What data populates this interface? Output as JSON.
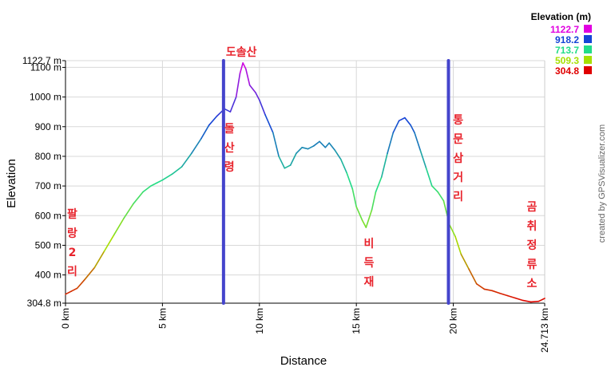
{
  "chart_data": {
    "type": "line",
    "title": "",
    "xlabel": "Distance",
    "ylabel": "Elevation",
    "credit": "created by GPSVisualizer.com",
    "xlim": [
      0,
      24.713
    ],
    "ylim": [
      304.8,
      1122.7
    ],
    "x_ticks": [
      {
        "value": 0,
        "label": "0 km"
      },
      {
        "value": 5,
        "label": "5 km"
      },
      {
        "value": 10,
        "label": "10 km"
      },
      {
        "value": 15,
        "label": "15 km"
      },
      {
        "value": 20,
        "label": "20 km"
      },
      {
        "value": 24.713,
        "label": "24.713 km"
      }
    ],
    "y_ticks": [
      {
        "value": 304.8,
        "label": "304.8 m"
      },
      {
        "value": 400,
        "label": "400 m"
      },
      {
        "value": 500,
        "label": "500 m"
      },
      {
        "value": 600,
        "label": "600 m"
      },
      {
        "value": 700,
        "label": "700 m"
      },
      {
        "value": 800,
        "label": "800 m"
      },
      {
        "value": 900,
        "label": "900 m"
      },
      {
        "value": 1000,
        "label": "1000 m"
      },
      {
        "value": 1100,
        "label": "1100 m"
      },
      {
        "value": 1122.7,
        "label": "1122.7 m"
      }
    ],
    "legend": {
      "title": "Elevation (m)",
      "placement": "top-right",
      "entries": [
        {
          "label": "1122.7",
          "color": "#e100e1"
        },
        {
          "label": "918.2",
          "color": "#1445d6"
        },
        {
          "label": "713.7",
          "color": "#22dd88"
        },
        {
          "label": "509.3",
          "color": "#a6e000"
        },
        {
          "label": "304.8",
          "color": "#e00000"
        }
      ]
    },
    "markers": [
      {
        "x": 8.15,
        "label": "도솔산",
        "label_pos": "top"
      },
      {
        "x": 19.75,
        "label": "",
        "label_pos": "none"
      }
    ],
    "annotations": [
      {
        "x": 0.35,
        "text": "팔랑2리"
      },
      {
        "x": 8.45,
        "text": "돌산령"
      },
      {
        "x": 15.65,
        "text": "비득재"
      },
      {
        "x": 20.25,
        "text": "통문삼거리"
      },
      {
        "x": 24.05,
        "text": "곰취정류소"
      }
    ],
    "series": [
      {
        "x": [
          0,
          0.3,
          0.6,
          1.0,
          1.5,
          2.0,
          2.5,
          3.0,
          3.5,
          4.0,
          4.4,
          4.7,
          5.0,
          5.5,
          6.0,
          6.5,
          7.0,
          7.4,
          7.8,
          8.2,
          8.5,
          8.8,
          9.0,
          9.15,
          9.3,
          9.5,
          9.8,
          10.0,
          10.3,
          10.7,
          11.0,
          11.3,
          11.6,
          11.9,
          12.2,
          12.5,
          12.8,
          13.1,
          13.4,
          13.6,
          13.9,
          14.2,
          14.5,
          14.8,
          15.0,
          15.3,
          15.5,
          15.8,
          16.0,
          16.3,
          16.6,
          16.9,
          17.2,
          17.5,
          17.8,
          18.0,
          18.3,
          18.6,
          18.9,
          19.2,
          19.5,
          19.8,
          20.1,
          20.4,
          20.8,
          21.2,
          21.6,
          22.0,
          22.4,
          22.8,
          23.2,
          23.6,
          24.0,
          24.4,
          24.713
        ],
        "values": [
          335,
          345,
          355,
          385,
          425,
          480,
          535,
          590,
          640,
          680,
          700,
          710,
          720,
          740,
          765,
          810,
          860,
          905,
          935,
          960,
          950,
          1000,
          1080,
          1115,
          1095,
          1040,
          1015,
          990,
          940,
          880,
          800,
          760,
          770,
          810,
          830,
          825,
          835,
          850,
          830,
          845,
          820,
          790,
          745,
          690,
          630,
          585,
          560,
          620,
          680,
          730,
          810,
          880,
          920,
          930,
          905,
          880,
          820,
          760,
          700,
          680,
          650,
          570,
          530,
          470,
          420,
          370,
          352,
          347,
          338,
          330,
          322,
          314,
          309,
          311,
          321
        ]
      }
    ]
  }
}
